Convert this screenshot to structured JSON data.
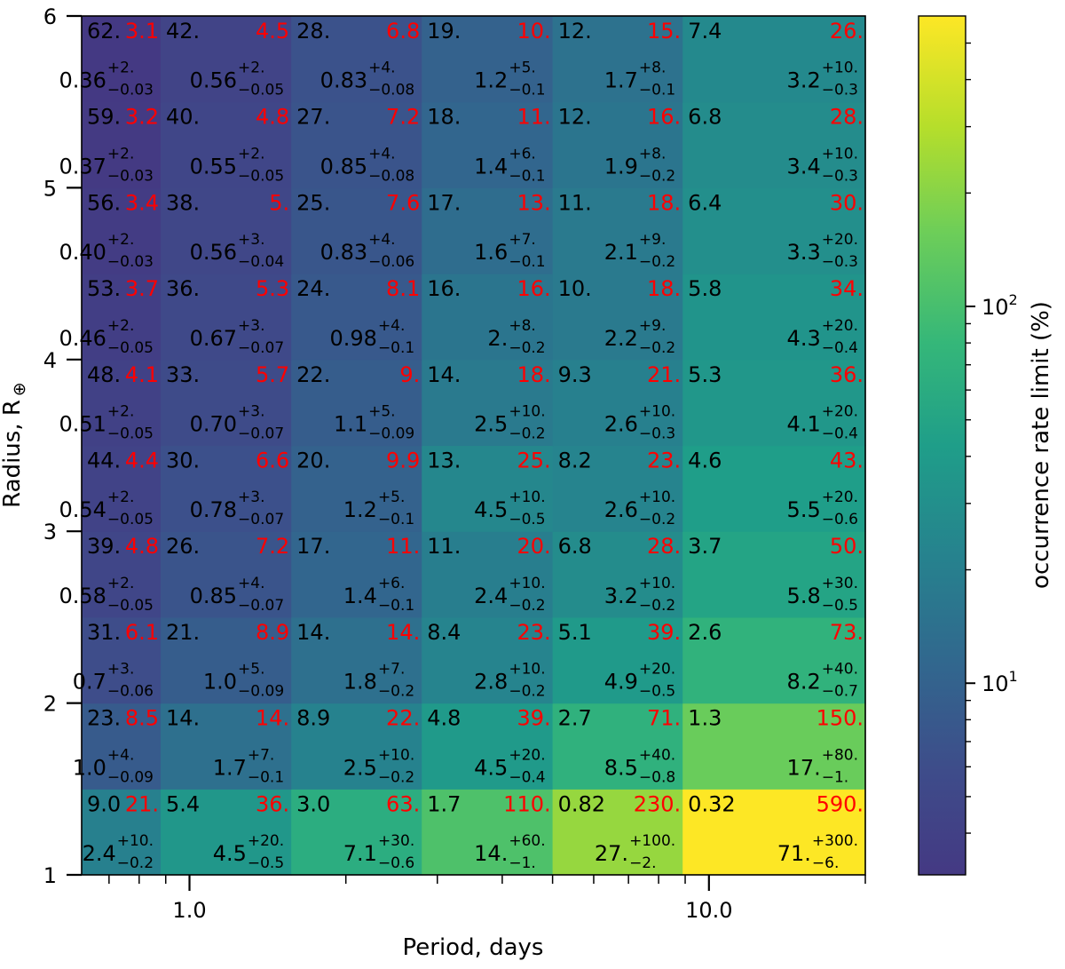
{
  "chart_data": {
    "type": "heatmap",
    "xlabel": "Period, days",
    "ylabel": "Radius, R",
    "ylabel_sub": "⊕",
    "colorbar_label": "occurrence rate limit (%)",
    "x_scale": "log",
    "xlim": [
      0.62,
      20
    ],
    "ylim": [
      1,
      6
    ],
    "x_ticks": [
      {
        "value": 1.0,
        "label": "1.0"
      },
      {
        "value": 10.0,
        "label": "10.0"
      }
    ],
    "y_ticks": [
      {
        "value": 1,
        "label": "1"
      },
      {
        "value": 2,
        "label": "2"
      },
      {
        "value": 3,
        "label": "3"
      },
      {
        "value": 4,
        "label": "4"
      },
      {
        "value": 5,
        "label": "5"
      },
      {
        "value": 6,
        "label": "6"
      }
    ],
    "colorbar_ticks": [
      {
        "value": 10,
        "base": "10",
        "exp": "1"
      },
      {
        "value": 100,
        "base": "10",
        "exp": "2"
      }
    ],
    "colorbar_range": [
      3.1,
      590
    ],
    "colormap": "viridis",
    "period_edges": [
      0.62,
      0.88,
      1.57,
      2.8,
      5.0,
      8.9,
      20
    ],
    "radius_edges": [
      1.0,
      1.5,
      2.0,
      2.5,
      3.0,
      3.5,
      4.0,
      4.5,
      5.0,
      5.5,
      6.0
    ],
    "rows": [
      {
        "cells": [
          {
            "black": "9.0",
            "red": "21.",
            "val": "2.4",
            "up": "+10.",
            "lo": "−0.2"
          },
          {
            "black": "5.4",
            "red": "36.",
            "val": "4.5",
            "up": "+20.",
            "lo": "−0.5"
          },
          {
            "black": "3.0",
            "red": "63.",
            "val": "7.1",
            "up": "+30.",
            "lo": "−0.6"
          },
          {
            "black": "1.7",
            "red": "110.",
            "val": "14.",
            "up": "+60.",
            "lo": "−1."
          },
          {
            "black": "0.82",
            "red": "230.",
            "val": "27.",
            "up": "+100.",
            "lo": "−2."
          },
          {
            "black": "0.32",
            "red": "590.",
            "val": "71.",
            "up": "+300.",
            "lo": "−6."
          }
        ]
      },
      {
        "cells": [
          {
            "black": "23.",
            "red": "8.5",
            "val": "1.0",
            "up": "+4.",
            "lo": "−0.09"
          },
          {
            "black": "14.",
            "red": "14.",
            "val": "1.7",
            "up": "+7.",
            "lo": "−0.1"
          },
          {
            "black": "8.9",
            "red": "22.",
            "val": "2.5",
            "up": "+10.",
            "lo": "−0.2"
          },
          {
            "black": "4.8",
            "red": "39.",
            "val": "4.5",
            "up": "+20.",
            "lo": "−0.4"
          },
          {
            "black": "2.7",
            "red": "71.",
            "val": "8.5",
            "up": "+40.",
            "lo": "−0.8"
          },
          {
            "black": "1.3",
            "red": "150.",
            "val": "17.",
            "up": "+80.",
            "lo": "−1."
          }
        ]
      },
      {
        "cells": [
          {
            "black": "31.",
            "red": "6.1",
            "val": "0.7",
            "up": "+3.",
            "lo": "−0.06"
          },
          {
            "black": "21.",
            "red": "8.9",
            "val": "1.0",
            "up": "+5.",
            "lo": "−0.09"
          },
          {
            "black": "14.",
            "red": "14.",
            "val": "1.8",
            "up": "+7.",
            "lo": "−0.2"
          },
          {
            "black": "8.4",
            "red": "23.",
            "val": "2.8",
            "up": "+10.",
            "lo": "−0.2"
          },
          {
            "black": "5.1",
            "red": "39.",
            "val": "4.9",
            "up": "+20.",
            "lo": "−0.5"
          },
          {
            "black": "2.6",
            "red": "73.",
            "val": "8.2",
            "up": "+40.",
            "lo": "−0.7"
          }
        ]
      },
      {
        "cells": [
          {
            "black": "39.",
            "red": "4.8",
            "val": "0.58",
            "up": "+2.",
            "lo": "−0.05"
          },
          {
            "black": "26.",
            "red": "7.2",
            "val": "0.85",
            "up": "+4.",
            "lo": "−0.07"
          },
          {
            "black": "17.",
            "red": "11.",
            "val": "1.4",
            "up": "+6.",
            "lo": "−0.1"
          },
          {
            "black": "11.",
            "red": "20.",
            "val": "2.4",
            "up": "+10.",
            "lo": "−0.2"
          },
          {
            "black": "6.8",
            "red": "28.",
            "val": "3.2",
            "up": "+10.",
            "lo": "−0.2"
          },
          {
            "black": "3.7",
            "red": "50.",
            "val": "5.8",
            "up": "+30.",
            "lo": "−0.5"
          }
        ]
      },
      {
        "cells": [
          {
            "black": "44.",
            "red": "4.4",
            "val": "0.54",
            "up": "+2.",
            "lo": "−0.05"
          },
          {
            "black": "30.",
            "red": "6.6",
            "val": "0.78",
            "up": "+3.",
            "lo": "−0.07"
          },
          {
            "black": "20.",
            "red": "9.9",
            "val": "1.2",
            "up": "+5.",
            "lo": "−0.1"
          },
          {
            "black": "13.",
            "red": "25.",
            "val": "4.5",
            "up": "+10.",
            "lo": "−0.5"
          },
          {
            "black": "8.2",
            "red": "23.",
            "val": "2.6",
            "up": "+10.",
            "lo": "−0.2"
          },
          {
            "black": "4.6",
            "red": "43.",
            "val": "5.5",
            "up": "+20.",
            "lo": "−0.6"
          }
        ]
      },
      {
        "cells": [
          {
            "black": "48.",
            "red": "4.1",
            "val": "0.51",
            "up": "+2.",
            "lo": "−0.05"
          },
          {
            "black": "33.",
            "red": "5.7",
            "val": "0.70",
            "up": "+3.",
            "lo": "−0.07"
          },
          {
            "black": "22.",
            "red": "9.",
            "val": "1.1",
            "up": "+5.",
            "lo": "−0.09"
          },
          {
            "black": "14.",
            "red": "18.",
            "val": "2.5",
            "up": "+10.",
            "lo": "−0.2"
          },
          {
            "black": "9.3",
            "red": "21.",
            "val": "2.6",
            "up": "+10.",
            "lo": "−0.3"
          },
          {
            "black": "5.3",
            "red": "36.",
            "val": "4.1",
            "up": "+20.",
            "lo": "−0.4"
          }
        ]
      },
      {
        "cells": [
          {
            "black": "53.",
            "red": "3.7",
            "val": "0.46",
            "up": "+2.",
            "lo": "−0.05"
          },
          {
            "black": "36.",
            "red": "5.3",
            "val": "0.67",
            "up": "+3.",
            "lo": "−0.07"
          },
          {
            "black": "24.",
            "red": "8.1",
            "val": "0.98",
            "up": "+4.",
            "lo": "−0.1"
          },
          {
            "black": "16.",
            "red": "16.",
            "val": "2.",
            "up": "+8.",
            "lo": "−0.2"
          },
          {
            "black": "10.",
            "red": "18.",
            "val": "2.2",
            "up": "+9.",
            "lo": "−0.2"
          },
          {
            "black": "5.8",
            "red": "34.",
            "val": "4.3",
            "up": "+20.",
            "lo": "−0.4"
          }
        ]
      },
      {
        "cells": [
          {
            "black": "56.",
            "red": "3.4",
            "val": "0.40",
            "up": "+2.",
            "lo": "−0.03"
          },
          {
            "black": "38.",
            "red": "5.",
            "val": "0.56",
            "up": "+3.",
            "lo": "−0.04"
          },
          {
            "black": "25.",
            "red": "7.6",
            "val": "0.83",
            "up": "+4.",
            "lo": "−0.06"
          },
          {
            "black": "17.",
            "red": "13.",
            "val": "1.6",
            "up": "+7.",
            "lo": "−0.1"
          },
          {
            "black": "11.",
            "red": "18.",
            "val": "2.1",
            "up": "+9.",
            "lo": "−0.2"
          },
          {
            "black": "6.4",
            "red": "30.",
            "val": "3.3",
            "up": "+20.",
            "lo": "−0.3"
          }
        ]
      },
      {
        "cells": [
          {
            "black": "59.",
            "red": "3.2",
            "val": "0.37",
            "up": "+2.",
            "lo": "−0.03"
          },
          {
            "black": "40.",
            "red": "4.8",
            "val": "0.55",
            "up": "+2.",
            "lo": "−0.05"
          },
          {
            "black": "27.",
            "red": "7.2",
            "val": "0.85",
            "up": "+4.",
            "lo": "−0.08"
          },
          {
            "black": "18.",
            "red": "11.",
            "val": "1.4",
            "up": "+6.",
            "lo": "−0.1"
          },
          {
            "black": "12.",
            "red": "16.",
            "val": "1.9",
            "up": "+8.",
            "lo": "−0.2"
          },
          {
            "black": "6.8",
            "red": "28.",
            "val": "3.4",
            "up": "+10.",
            "lo": "−0.3"
          }
        ]
      },
      {
        "cells": [
          {
            "black": "62.",
            "red": "3.1",
            "val": "0.36",
            "up": "+2.",
            "lo": "−0.03"
          },
          {
            "black": "42.",
            "red": "4.5",
            "val": "0.56",
            "up": "+2.",
            "lo": "−0.05"
          },
          {
            "black": "28.",
            "red": "6.8",
            "val": "0.83",
            "up": "+4.",
            "lo": "−0.08"
          },
          {
            "black": "19.",
            "red": "10.",
            "val": "1.2",
            "up": "+5.",
            "lo": "−0.1"
          },
          {
            "black": "12.",
            "red": "15.",
            "val": "1.7",
            "up": "+8.",
            "lo": "−0.1"
          },
          {
            "black": "7.4",
            "red": "26.",
            "val": "3.2",
            "up": "+10.",
            "lo": "−0.3"
          }
        ]
      }
    ]
  }
}
